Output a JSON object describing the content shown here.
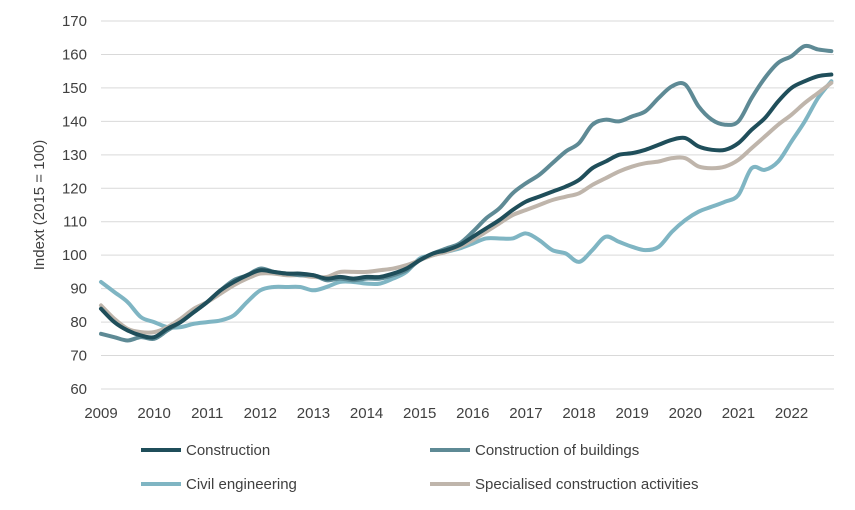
{
  "chart_data": {
    "type": "line",
    "title": "",
    "xlabel": "",
    "ylabel": "Indext (2015 = 100)",
    "xlim": [
      2009,
      2022.8
    ],
    "ylim": [
      60,
      170
    ],
    "yticks": [
      60,
      70,
      80,
      90,
      100,
      110,
      120,
      130,
      140,
      150,
      160,
      170
    ],
    "xticks": [
      "2009",
      "2010",
      "2011",
      "2012",
      "2013",
      "2014",
      "2015",
      "2016",
      "2017",
      "2018",
      "2019",
      "2020",
      "2021",
      "2022"
    ],
    "grid": true,
    "legend_position": "bottom",
    "x": [
      2009.0,
      2009.25,
      2009.5,
      2009.75,
      2010.0,
      2010.25,
      2010.5,
      2010.75,
      2011.0,
      2011.25,
      2011.5,
      2011.75,
      2012.0,
      2012.25,
      2012.5,
      2012.75,
      2013.0,
      2013.25,
      2013.5,
      2013.75,
      2014.0,
      2014.25,
      2014.5,
      2014.75,
      2015.0,
      2015.25,
      2015.5,
      2015.75,
      2016.0,
      2016.25,
      2016.5,
      2016.75,
      2017.0,
      2017.25,
      2017.5,
      2017.75,
      2018.0,
      2018.25,
      2018.5,
      2018.75,
      2019.0,
      2019.25,
      2019.5,
      2019.75,
      2020.0,
      2020.25,
      2020.5,
      2020.75,
      2021.0,
      2021.25,
      2021.5,
      2021.75,
      2022.0,
      2022.25,
      2022.5,
      2022.75
    ],
    "series": [
      {
        "name": "Construction",
        "color": "#1f4e5a",
        "values": [
          84,
          80,
          77.5,
          76,
          75.5,
          78,
          80,
          83,
          86,
          89.5,
          92,
          94,
          95.5,
          95,
          94.5,
          94.5,
          94,
          93,
          93.5,
          93,
          93.5,
          93.5,
          94.5,
          96,
          98.5,
          100.5,
          101.5,
          103,
          105.5,
          108,
          110.5,
          113.5,
          116,
          117.5,
          119,
          120.5,
          122.5,
          126,
          128,
          130,
          130.5,
          131.5,
          133,
          134.5,
          135,
          132.5,
          131.5,
          131.5,
          133.5,
          137.5,
          141,
          146,
          150,
          152,
          153.5,
          154
        ]
      },
      {
        "name": "Construction of buildings",
        "color": "#5e8a95",
        "values": [
          76.5,
          75.5,
          74.5,
          75.5,
          75,
          77.5,
          80,
          83,
          86,
          89.5,
          92.5,
          94,
          96,
          95,
          94.5,
          94,
          94,
          92.5,
          93,
          92.5,
          93,
          93,
          94,
          95.5,
          98.5,
          100.5,
          102,
          103.5,
          107,
          111,
          114,
          118.5,
          121.5,
          124,
          127.5,
          131,
          133.5,
          139,
          140.5,
          140,
          141.5,
          143,
          147,
          150.5,
          151,
          144.5,
          140.5,
          139,
          140,
          147,
          153,
          157.5,
          159.5,
          162.5,
          161.5,
          161
        ]
      },
      {
        "name": "Civil engineering",
        "color": "#7fb5c3",
        "values": [
          92,
          89,
          86,
          81.5,
          80,
          78.5,
          78.5,
          79.5,
          80,
          80.5,
          82,
          86,
          89.5,
          90.5,
          90.5,
          90.5,
          89.5,
          90.5,
          92,
          92,
          91.5,
          91.5,
          93,
          95,
          99,
          100,
          101,
          102,
          103.5,
          105,
          105,
          105,
          106.5,
          104.5,
          101.5,
          100.5,
          98,
          101.5,
          105.5,
          104,
          102.5,
          101.5,
          102.5,
          107,
          110.5,
          113,
          114.5,
          116,
          118,
          126,
          125.5,
          128,
          134,
          140,
          147,
          152
        ]
      },
      {
        "name": "Specialised construction activities",
        "color": "#bfb5ab",
        "values": [
          85,
          81,
          78,
          77,
          77,
          78.5,
          81,
          84,
          86,
          88.5,
          91,
          93,
          94.5,
          94.5,
          94,
          94,
          93.5,
          93.5,
          95,
          95,
          95,
          95.5,
          96,
          97,
          98.5,
          100,
          101,
          102.5,
          104.5,
          107,
          109.5,
          112,
          113.5,
          115,
          116.5,
          117.5,
          118.5,
          121,
          123,
          125,
          126.5,
          127.5,
          128,
          129,
          129,
          126.5,
          126,
          126.5,
          128.5,
          132,
          135.5,
          139,
          142,
          145.5,
          148.5,
          151.5
        ]
      }
    ]
  }
}
